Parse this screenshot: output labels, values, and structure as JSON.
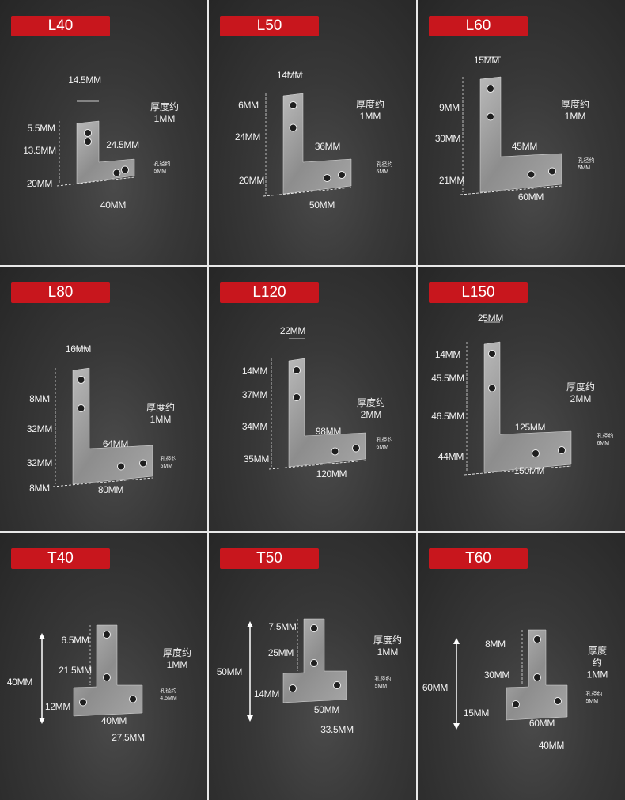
{
  "panels": [
    {
      "title": "L40",
      "thickness_label": "厚度约",
      "thickness": "1MM",
      "hole_label": "孔径约",
      "hole": "5MM",
      "dims": [
        "14.5MM",
        "5.5MM",
        "13.5MM",
        "24.5MM",
        "20MM",
        "40MM"
      ]
    },
    {
      "title": "L50",
      "thickness_label": "厚度约",
      "thickness": "1MM",
      "hole_label": "孔径约",
      "hole": "5MM",
      "dims": [
        "14MM",
        "6MM",
        "24MM",
        "36MM",
        "20MM",
        "50MM"
      ]
    },
    {
      "title": "L60",
      "thickness_label": "厚度约",
      "thickness": "1MM",
      "hole_label": "孔径约",
      "hole": "5MM",
      "dims": [
        "15MM",
        "9MM",
        "30MM",
        "45MM",
        "21MM",
        "60MM"
      ]
    },
    {
      "title": "L80",
      "thickness_label": "厚度约",
      "thickness": "1MM",
      "hole_label": "孔径约",
      "hole": "5MM",
      "dims": [
        "16MM",
        "8MM",
        "32MM",
        "32MM",
        "8MM",
        "64MM",
        "80MM"
      ]
    },
    {
      "title": "L120",
      "thickness_label": "厚度约",
      "thickness": "2MM",
      "hole_label": "孔径约",
      "hole": "6MM",
      "dims": [
        "22MM",
        "14MM",
        "37MM",
        "34MM",
        "98MM",
        "35MM",
        "120MM"
      ]
    },
    {
      "title": "L150",
      "thickness_label": "厚度约",
      "thickness": "2MM",
      "hole_label": "孔径约",
      "hole": "6MM",
      "dims": [
        "25MM",
        "14MM",
        "45.5MM",
        "46.5MM",
        "125MM",
        "44MM",
        "150MM"
      ]
    },
    {
      "title": "T40",
      "thickness_label": "厚度约",
      "thickness": "1MM",
      "hole_label": "孔径约",
      "hole": "4.5MM",
      "dims": [
        "40MM",
        "6.5MM",
        "21.5MM",
        "12MM",
        "40MM",
        "27.5MM"
      ]
    },
    {
      "title": "T50",
      "thickness_label": "厚度约",
      "thickness": "1MM",
      "hole_label": "孔径约",
      "hole": "5MM",
      "dims": [
        "50MM",
        "7.5MM",
        "25MM",
        "14MM",
        "50MM",
        "33.5MM"
      ]
    },
    {
      "title": "T60",
      "thickness_label": "厚度约",
      "thickness": "1MM",
      "hole_label": "孔径约",
      "hole": "5MM",
      "dims": [
        "60MM",
        "8MM",
        "30MM",
        "15MM",
        "60MM",
        "40MM"
      ]
    }
  ],
  "colors": {
    "badge": "#c8161d",
    "background": "#2e2e2e",
    "divider": "#e8e8e8"
  }
}
